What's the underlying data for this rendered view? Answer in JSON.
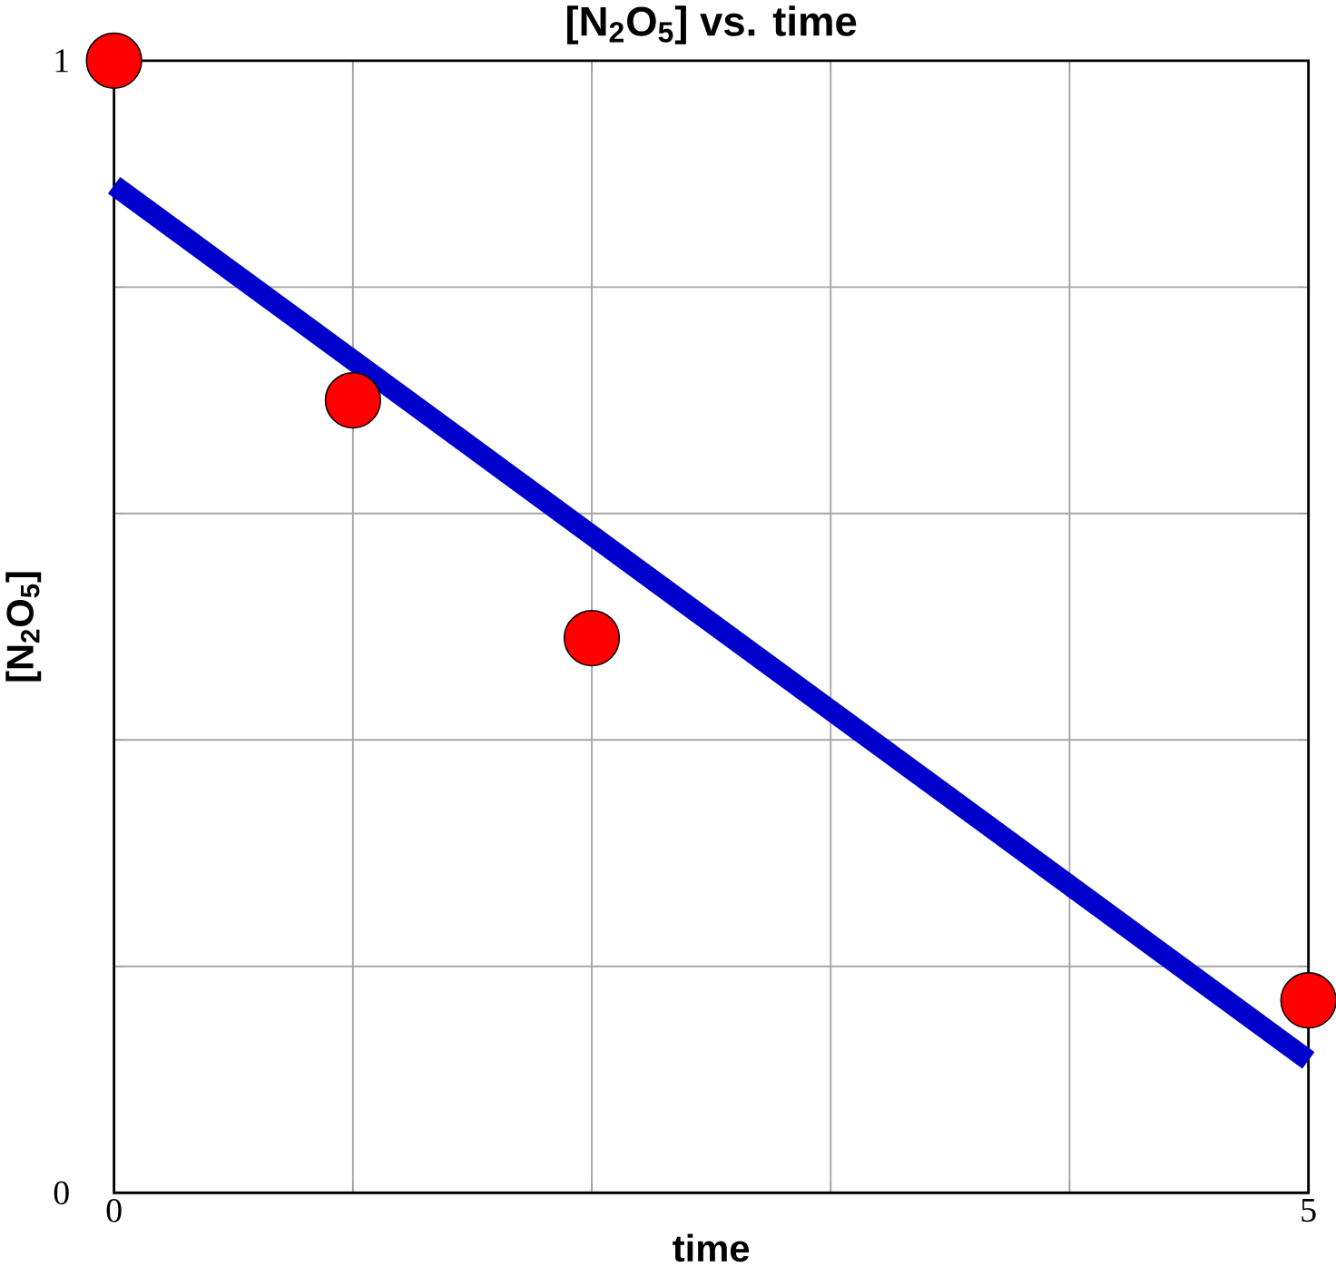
{
  "chart_data": {
    "type": "scatter",
    "title": "[N$_{2}$O$_{5}$] vs. time",
    "xlabel": "time",
    "ylabel": "[N$_{2}$O$_{5}$]",
    "xlim": [
      0,
      5
    ],
    "ylim": [
      0,
      1
    ],
    "xticks": [
      0,
      {
        "value": 1,
        "label": null
      },
      {
        "value": 2,
        "label": null
      },
      {
        "value": 3,
        "label": null
      },
      {
        "value": 4,
        "label": null
      },
      5
    ],
    "yticks": [
      0,
      {
        "value": 0.2,
        "label": null
      },
      {
        "value": 0.4,
        "label": null
      },
      {
        "value": 0.6,
        "label": null
      },
      {
        "value": 0.8,
        "label": null
      },
      1
    ],
    "grid": true,
    "series": [
      {
        "marker": "circle",
        "color": "#ff0000",
        "x": [
          0,
          1,
          2,
          5
        ],
        "values": [
          1,
          0.7,
          0.49,
          0.17
        ]
      },
      {
        "type": "line",
        "color": "#0000cc",
        "x": [
          0,
          5
        ],
        "values": [
          0.89,
          0.117
        ]
      }
    ]
  }
}
